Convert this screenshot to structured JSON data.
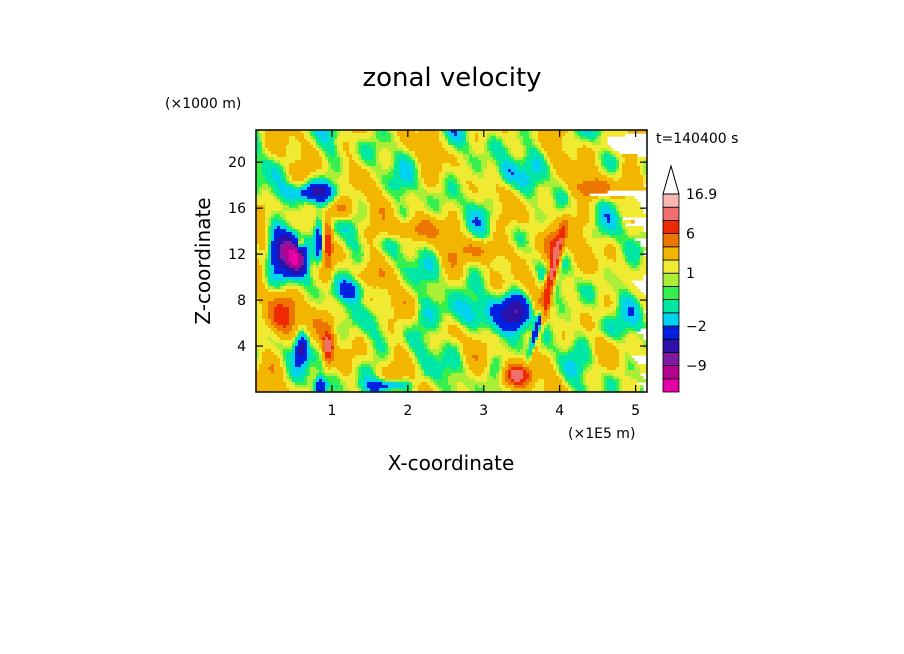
{
  "chart_data": {
    "type": "heatmap",
    "title": "zonal velocity",
    "xlabel": "X-coordinate",
    "ylabel": "Z-coordinate",
    "x_unit": "(×1E5 m)",
    "y_unit": "(×1000 m)",
    "time_label": "t=140400 s",
    "xlim": [
      0,
      5.15
    ],
    "ylim": [
      0,
      22.8
    ],
    "x_ticks": [
      1,
      2,
      3,
      4,
      5
    ],
    "y_ticks": [
      4,
      8,
      12,
      16,
      20
    ],
    "colorbar": {
      "tick_labels": [
        "16.9",
        "6",
        "1",
        "-2",
        "-9"
      ],
      "levels": [
        -13.5,
        -11,
        -9,
        -7,
        -4.5,
        -2,
        -1,
        0,
        0.5,
        1,
        2,
        4,
        6,
        8,
        11,
        16.9
      ],
      "colors": [
        "#e600a8",
        "#b3008f",
        "#7f18a3",
        "#2b11a8",
        "#0022e0",
        "#00d2f0",
        "#00e6a5",
        "#34ef4d",
        "#aaee38",
        "#f0ea33",
        "#f2b500",
        "#ed7600",
        "#f02a00",
        "#f07070",
        "#f6b8b0"
      ],
      "extend": "max"
    },
    "field_description": "2-D contour field of zonal velocity (x-z section)"
  }
}
